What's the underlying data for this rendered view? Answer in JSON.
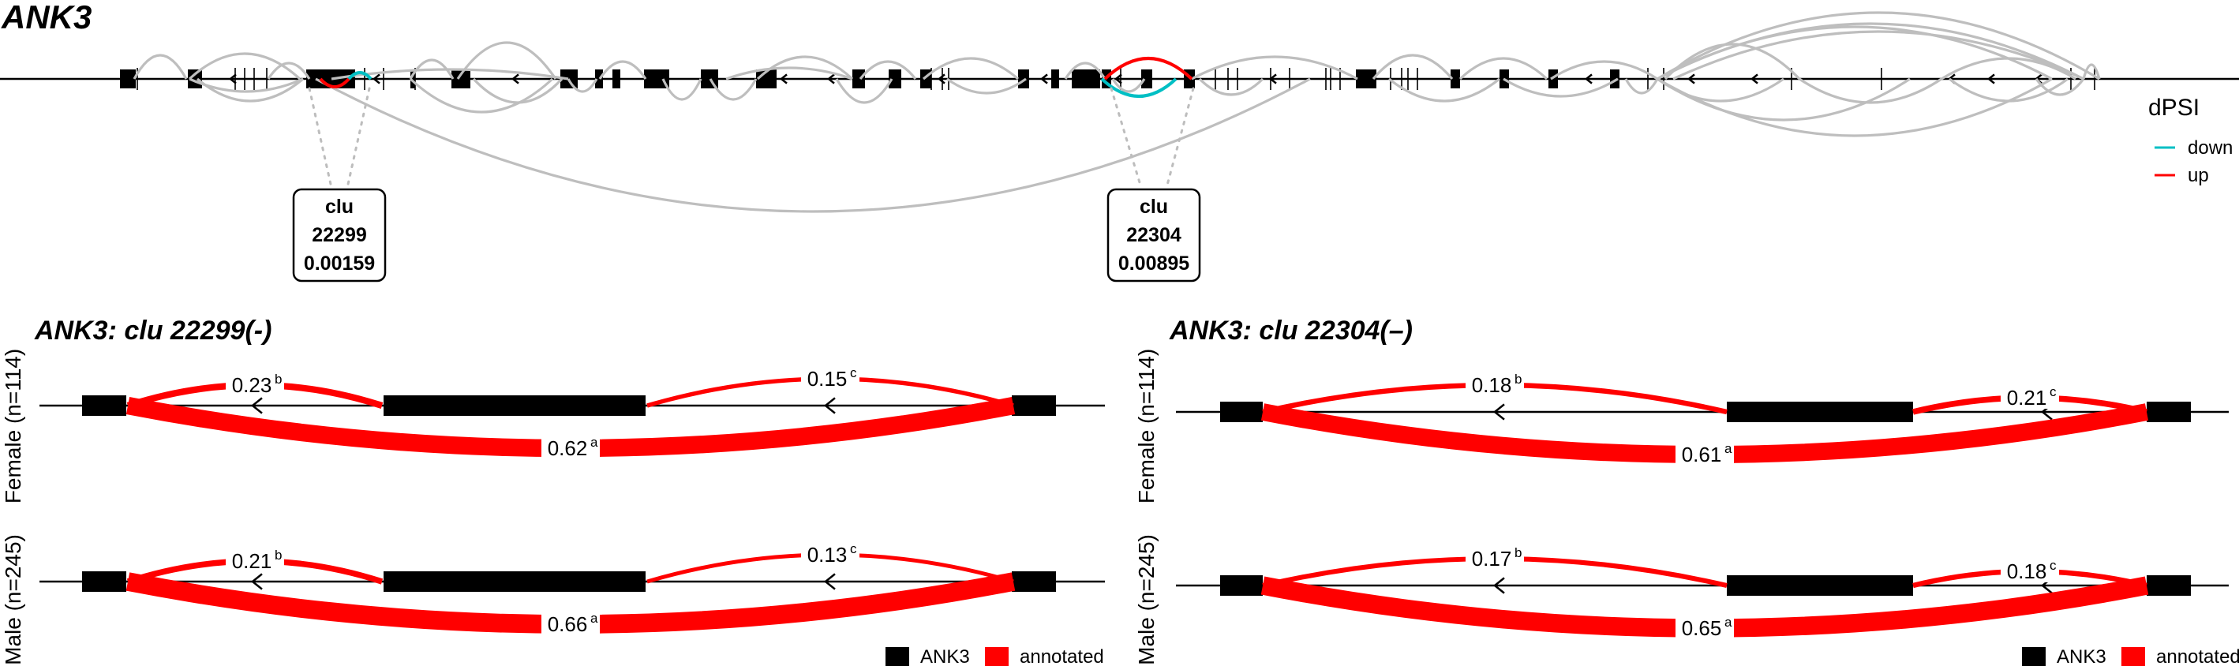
{
  "gene": "ANK3",
  "colors": {
    "exon": "#000000",
    "junction_gray": "#bebebe",
    "up": "#ff0000",
    "down": "#00bfc4",
    "annotated": "#ff0000"
  },
  "overview": {
    "legend": {
      "title": "dPSI",
      "items": [
        {
          "label": "down"
        },
        {
          "label": "up"
        }
      ]
    },
    "clusters": [
      {
        "line1": "clu",
        "line2": "22299",
        "line3": "0.00159"
      },
      {
        "line1": "clu",
        "line2": "22304",
        "line3": "0.00895"
      }
    ]
  },
  "panels": [
    {
      "title": "ANK3: clu 22299(-)",
      "rows": [
        {
          "label": "Female (n=114)",
          "junctions": [
            {
              "value": "0.23",
              "sup": "b"
            },
            {
              "value": "0.15",
              "sup": "c"
            },
            {
              "value": "0.62",
              "sup": "a"
            }
          ]
        },
        {
          "label": "Male (n=245)",
          "junctions": [
            {
              "value": "0.21",
              "sup": "b"
            },
            {
              "value": "0.13",
              "sup": "c"
            },
            {
              "value": "0.66",
              "sup": "a"
            }
          ]
        }
      ],
      "legend": [
        {
          "label": "ANK3",
          "color": "#000000"
        },
        {
          "label": "annotated",
          "color": "#ff0000"
        }
      ]
    },
    {
      "title": "ANK3: clu 22304(–)",
      "rows": [
        {
          "label": "Female (n=114)",
          "junctions": [
            {
              "value": "0.18",
              "sup": "b"
            },
            {
              "value": "0.21",
              "sup": "c"
            },
            {
              "value": "0.61",
              "sup": "a"
            }
          ]
        },
        {
          "label": "Male (n=245)",
          "junctions": [
            {
              "value": "0.17",
              "sup": "b"
            },
            {
              "value": "0.18",
              "sup": "c"
            },
            {
              "value": "0.65",
              "sup": "a"
            }
          ]
        }
      ],
      "legend": [
        {
          "label": "ANK3",
          "color": "#000000"
        },
        {
          "label": "annotated",
          "color": "#ff0000"
        }
      ]
    }
  ]
}
